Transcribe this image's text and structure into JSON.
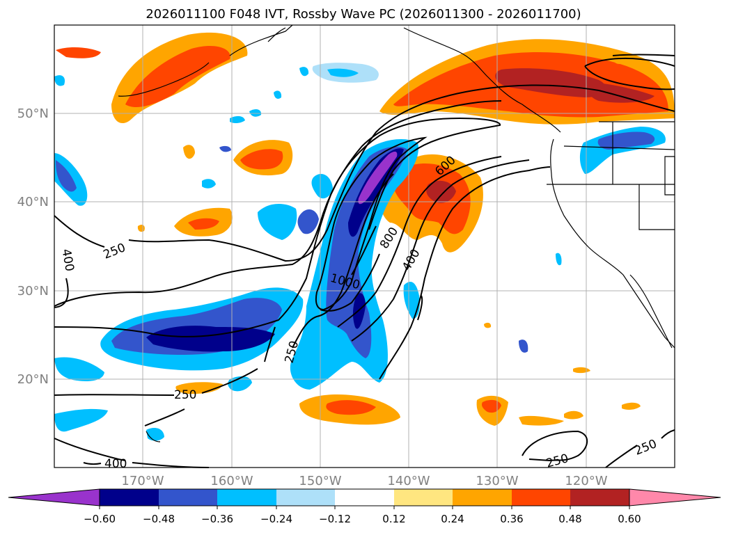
{
  "title": "2026011100 F048 IVT, Rossby Wave PC (2026011300 - 2026011700)",
  "map": {
    "lon_labels": [
      "170°W",
      "160°W",
      "150°W",
      "140°W",
      "130°W",
      "120°W"
    ],
    "lat_labels": [
      "50°N",
      "40°N",
      "30°N",
      "20°N"
    ],
    "contour_labels": [
      "250",
      "400",
      "250",
      "1000",
      "800",
      "600",
      "400",
      "250",
      "400",
      "250",
      "250",
      "250"
    ]
  },
  "colorbar": {
    "ticks": [
      "−0.60",
      "−0.48",
      "−0.36",
      "−0.24",
      "−0.12",
      "0.12",
      "0.24",
      "0.36",
      "0.48",
      "0.60"
    ],
    "colors": [
      "#9933cc",
      "#00008b",
      "#3355cc",
      "#00bfff",
      "#aee0f9",
      "#ffffff",
      "#ffe680",
      "#ffa500",
      "#ff4500",
      "#b22222",
      "#ff88aa"
    ]
  }
}
